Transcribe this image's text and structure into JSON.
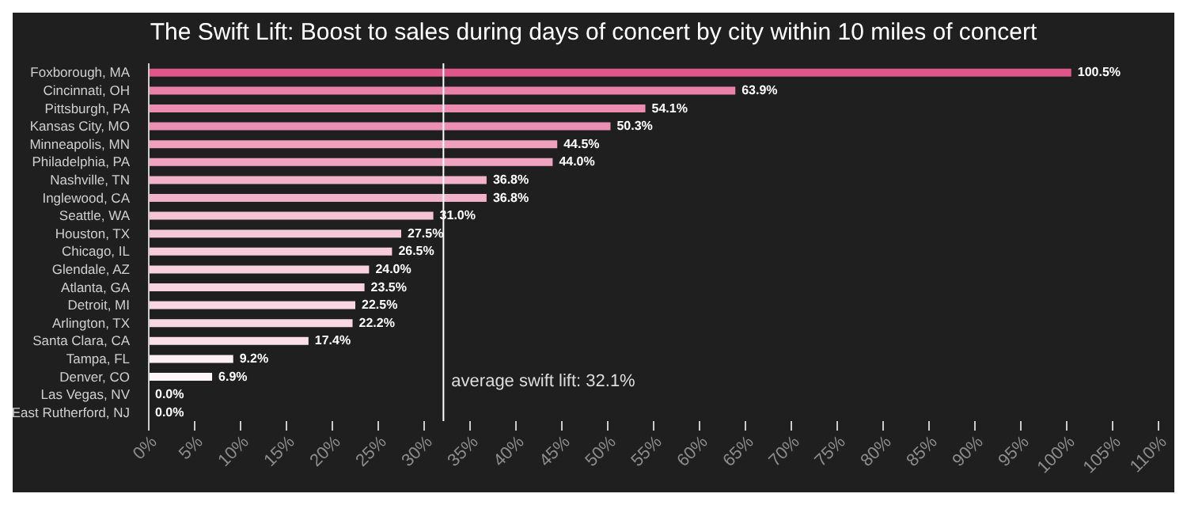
{
  "chart_data": {
    "type": "bar",
    "orientation": "horizontal",
    "title": "The Swift Lift: Boost to sales during days of concert by city within 10 miles of concert",
    "categories": [
      "Foxborough, MA",
      "Cincinnati, OH",
      "Pittsburgh, PA",
      "Kansas City, MO",
      "Minneapolis, MN",
      "Philadelphia, PA",
      "Nashville, TN",
      "Inglewood, CA",
      "Seattle, WA",
      "Houston, TX",
      "Chicago, IL",
      "Glendale, AZ",
      "Atlanta, GA",
      "Detroit, MI",
      "Arlington, TX",
      "Santa Clara, CA",
      "Tampa, FL",
      "Denver, CO",
      "Las Vegas, NV",
      "East Rutherford, NJ"
    ],
    "values": [
      100.5,
      63.9,
      54.1,
      50.3,
      44.5,
      44.0,
      36.8,
      36.8,
      31.0,
      27.5,
      26.5,
      24.0,
      23.5,
      22.5,
      22.2,
      17.4,
      9.2,
      6.9,
      0.0,
      0.0
    ],
    "value_labels": [
      "100.5%",
      "63.9%",
      "54.1%",
      "50.3%",
      "44.5%",
      "44.0%",
      "36.8%",
      "36.8%",
      "31.0%",
      "27.5%",
      "26.5%",
      "24.0%",
      "23.5%",
      "22.5%",
      "22.2%",
      "17.4%",
      "9.2%",
      "6.9%",
      "0.0%",
      "0.0%"
    ],
    "colors": [
      "#e0558a",
      "#e880a8",
      "#eb8cb0",
      "#ec90b3",
      "#eea0bd",
      "#efa3c0",
      "#f2b3ca",
      "#f2b3ca",
      "#f5c3d4",
      "#f6c9d8",
      "#f7cbda",
      "#f8d2df",
      "#f8d3e0",
      "#f9d6e2",
      "#f9d7e2",
      "#fbe0e9",
      "#fdf0f4",
      "#fef5f8",
      "#ffffff",
      "#ffffff"
    ],
    "xlim": [
      0,
      110
    ],
    "xticks": [
      {
        "value": 0,
        "label": "0%"
      },
      {
        "value": 5,
        "label": "5%"
      },
      {
        "value": 10,
        "label": "10%"
      },
      {
        "value": 15,
        "label": "15%"
      },
      {
        "value": 20,
        "label": "20%"
      },
      {
        "value": 25,
        "label": "25%"
      },
      {
        "value": 30,
        "label": "30%"
      },
      {
        "value": 35,
        "label": "35%"
      },
      {
        "value": 40,
        "label": "40%"
      },
      {
        "value": 45,
        "label": "45%"
      },
      {
        "value": 50,
        "label": "50%"
      },
      {
        "value": 55,
        "label": "55%"
      },
      {
        "value": 60,
        "label": "60%"
      },
      {
        "value": 65,
        "label": "65%"
      },
      {
        "value": 70,
        "label": "70%"
      },
      {
        "value": 75,
        "label": "75%"
      },
      {
        "value": 80,
        "label": "80%"
      },
      {
        "value": 85,
        "label": "85%"
      },
      {
        "value": 90,
        "label": "90%"
      },
      {
        "value": 95,
        "label": "95%"
      },
      {
        "value": 100,
        "label": "100%"
      },
      {
        "value": 105,
        "label": "105%"
      },
      {
        "value": 110,
        "label": "110%"
      }
    ],
    "ref_lines": [
      {
        "axis": "x",
        "value": 32.1,
        "label": "average swift lift: 32.1%",
        "color": "#ffffff"
      }
    ],
    "grid": false,
    "legend": false
  }
}
